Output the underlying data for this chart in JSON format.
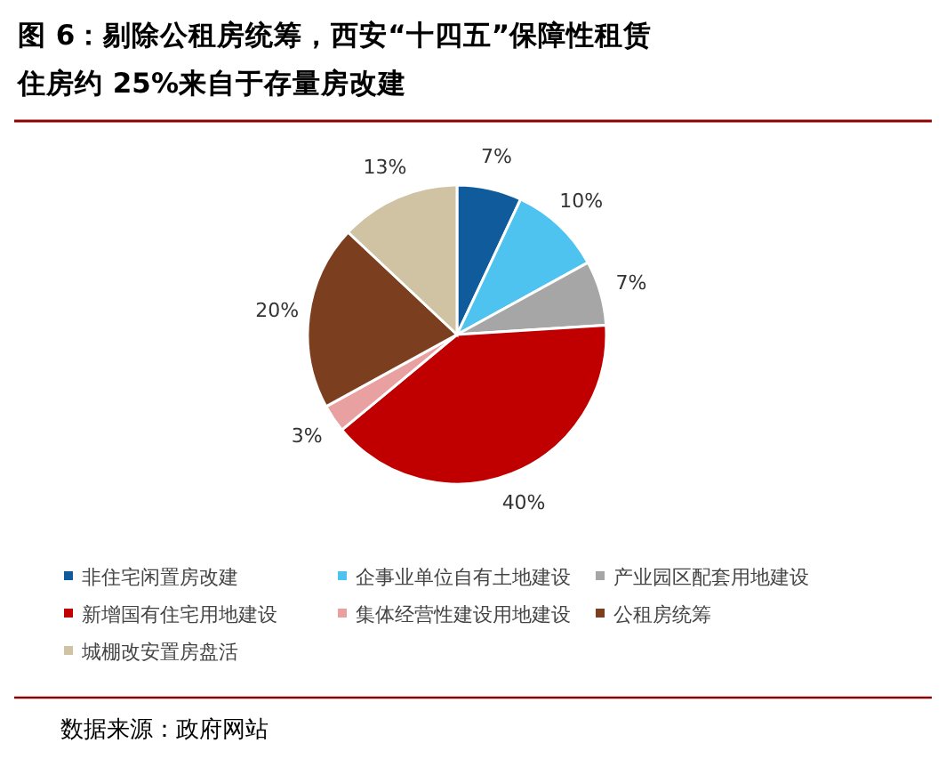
{
  "chart_data": {
    "type": "pie",
    "title": "图 6：剔除公租房统筹，西安“十四五”保障性租赁住房约 25%来自于存量房改建",
    "categories": [
      "非住宅闲置房改建",
      "企事业单位自有土地建设",
      "产业园区配套用地建设",
      "新增国有住宅用地建设",
      "集体经营性建设用地建设",
      "公租房统筹",
      "城棚改安置房盘活"
    ],
    "values": [
      7,
      10,
      7,
      40,
      3,
      20,
      13
    ],
    "colors": [
      "#0f5b9c",
      "#4fc3ef",
      "#a6a6a6",
      "#c00000",
      "#e8a0a0",
      "#7b3f1f",
      "#cfc3a3"
    ],
    "value_labels": [
      "7%",
      "10%",
      "7%",
      "40%",
      "3%",
      "20%",
      "13%"
    ],
    "legend": "bottom",
    "annotations": [
      "数据来源：政府网站"
    ]
  }
}
